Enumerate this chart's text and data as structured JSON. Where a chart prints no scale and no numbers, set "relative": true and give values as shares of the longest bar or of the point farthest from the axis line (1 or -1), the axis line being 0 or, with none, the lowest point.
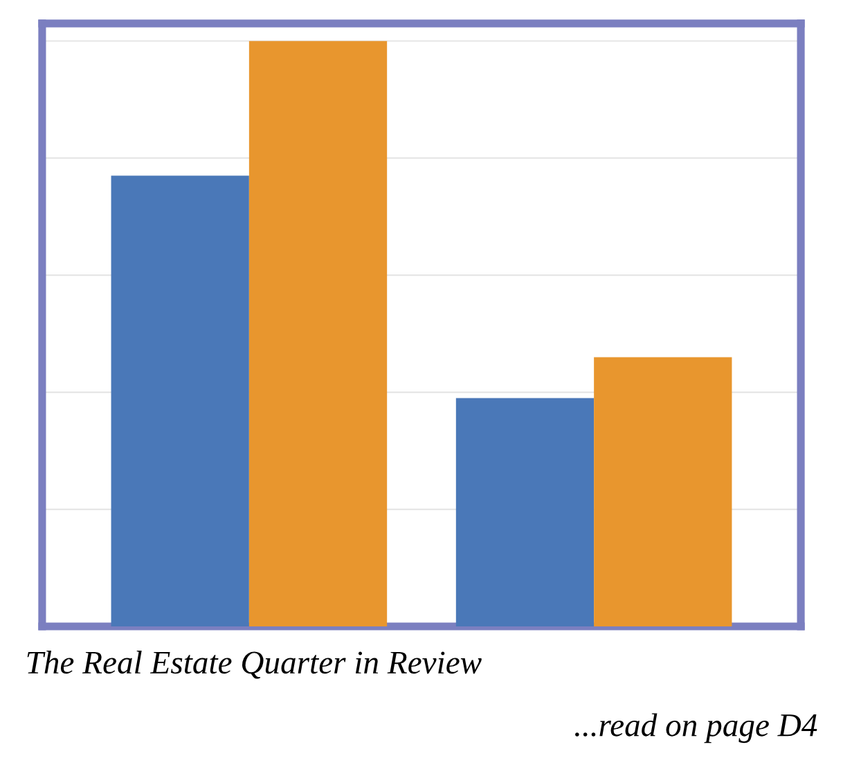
{
  "chart_data": {
    "type": "bar",
    "relative": true,
    "categories": [
      null,
      null
    ],
    "series": [
      {
        "color": "#4a78b8",
        "values": [
          0.77,
          0.39
        ]
      },
      {
        "color": "#e8962e",
        "values": [
          1,
          0.46
        ]
      }
    ],
    "grid": "y",
    "legend": false,
    "annotations": [
      "The Real Estate Quarter in Review",
      "...read on page D4"
    ]
  }
}
